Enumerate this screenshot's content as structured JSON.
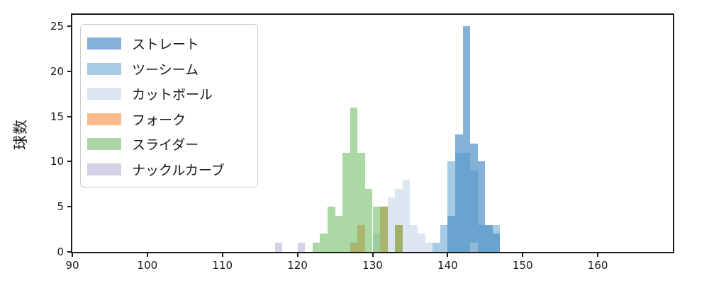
{
  "figure": {
    "ylabel": "球数"
  },
  "chart_data": {
    "type": "histogram",
    "title": "",
    "xlabel": "",
    "ylabel": "球数",
    "xlim": [
      90,
      170
    ],
    "ylim": [
      0,
      26.25
    ],
    "xticks": [
      90,
      100,
      110,
      120,
      130,
      140,
      150,
      160
    ],
    "yticks": [
      0,
      5,
      10,
      15,
      20,
      25
    ],
    "bin_width": 1,
    "bar_alpha": 0.5,
    "grid": false,
    "legend_position": "upper-left",
    "series": [
      {
        "name": "ストレート",
        "base_color": "#0b63b1",
        "bins": {
          "140": 4,
          "141": 13,
          "142": 25,
          "143": 12,
          "144": 10,
          "145": 3,
          "146": 2
        }
      },
      {
        "name": "ツーシーム",
        "base_color": "#4d97c7",
        "bins": {
          "138": 1,
          "139": 3,
          "140": 10,
          "141": 11,
          "142": 11,
          "143": 9,
          "144": 3,
          "145": 3,
          "146": 3
        }
      },
      {
        "name": "カットボール",
        "base_color": "#b9cde5",
        "bins": {
          "130": 2,
          "132": 6,
          "133": 7,
          "134": 8,
          "135": 3,
          "136": 2,
          "137": 1,
          "143": 1
        }
      },
      {
        "name": "フォーク",
        "base_color": "#f77715",
        "bins": {
          "127": 1,
          "128": 3,
          "131": 5,
          "133": 3
        }
      },
      {
        "name": "スライダー",
        "base_color": "#57b14b",
        "bins": {
          "122": 1,
          "123": 2,
          "124": 5,
          "125": 4,
          "126": 11,
          "127": 16,
          "128": 11,
          "129": 7,
          "130": 5,
          "131": 5,
          "133": 3
        }
      },
      {
        "name": "ナックルカーブ",
        "base_color": "#a7a5cf",
        "bins": {
          "117": 1,
          "120": 1
        }
      }
    ]
  }
}
